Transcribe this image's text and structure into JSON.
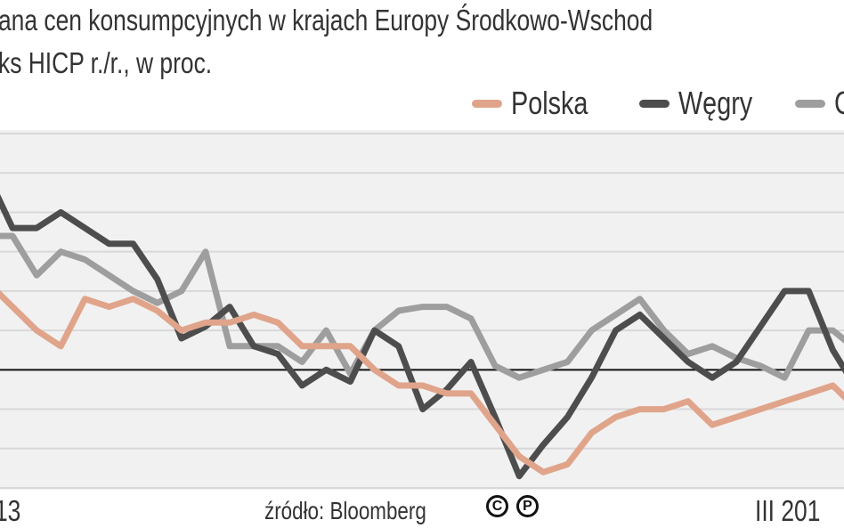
{
  "chart_data": {
    "type": "line",
    "title": "ana cen konsumpcyjnych w krajach Europy Środkowo-Wschod",
    "subtitle": "ks HICP r./r., w proc.",
    "legend_position": "top-right",
    "grid": true,
    "ylim": [
      -3,
      6
    ],
    "x_tick_labels": [
      "13",
      "III 201"
    ],
    "series": [
      {
        "name": "Polska",
        "color": "#e0a48a",
        "values": [
          2.2,
          1.6,
          1.0,
          0.6,
          1.8,
          1.6,
          1.8,
          1.5,
          1.0,
          1.2,
          1.2,
          1.4,
          1.2,
          0.6,
          0.6,
          0.6,
          0.0,
          -0.4,
          -0.4,
          -0.6,
          -0.6,
          -1.4,
          -2.2,
          -2.6,
          -2.4,
          -1.6,
          -1.2,
          -1.0,
          -1.0,
          -0.8,
          -1.4,
          -1.2,
          -1.0,
          -0.8,
          -0.6,
          -0.4,
          -1.0
        ]
      },
      {
        "name": "Węgry",
        "color": "#4d4d4d",
        "values": [
          4.9,
          3.6,
          3.6,
          4.0,
          3.6,
          3.2,
          3.2,
          2.3,
          0.8,
          1.1,
          1.6,
          0.6,
          0.4,
          -0.4,
          0.0,
          -0.3,
          1.0,
          0.6,
          -1.0,
          -0.5,
          0.2,
          -1.2,
          -2.7,
          -1.9,
          -1.2,
          -0.2,
          1.0,
          1.4,
          0.8,
          0.2,
          -0.2,
          0.2,
          1.1,
          2.0,
          2.0,
          0.5,
          -0.5
        ]
      },
      {
        "name": "C",
        "color": "#9e9e9e",
        "values": [
          3.4,
          3.4,
          2.4,
          3.0,
          2.8,
          2.4,
          2.0,
          1.7,
          2.0,
          3.0,
          0.6,
          0.6,
          0.6,
          0.2,
          1.0,
          -0.1,
          1.0,
          1.5,
          1.6,
          1.6,
          1.3,
          0.1,
          -0.2,
          0.0,
          0.2,
          1.0,
          1.4,
          1.8,
          1.0,
          0.4,
          0.6,
          0.3,
          0.1,
          -0.2,
          1.0,
          1.0,
          0.5
        ]
      }
    ]
  },
  "footer": {
    "source": "źródło: Bloomberg",
    "copyright_symbols": [
      "C",
      "P"
    ]
  }
}
